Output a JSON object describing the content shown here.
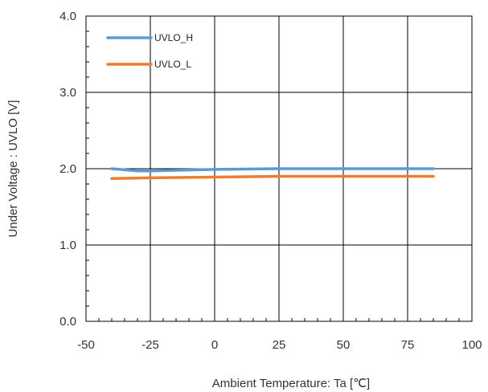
{
  "chart_data": {
    "type": "line",
    "xlabel": "Ambient Temperature: Ta [℃]",
    "ylabel": "Under Voltage : UVLO [V]",
    "xlim": [
      -50,
      100
    ],
    "ylim": [
      0.0,
      4.0
    ],
    "x_ticks": [
      -50,
      -25,
      0,
      25,
      50,
      75,
      100
    ],
    "x_tick_labels": [
      "-50",
      "-25",
      "0",
      "25",
      "50",
      "75",
      "100"
    ],
    "y_ticks": [
      0.0,
      1.0,
      2.0,
      3.0,
      4.0
    ],
    "y_tick_labels": [
      "0.0",
      "1.0",
      "2.0",
      "3.0",
      "4.0"
    ],
    "grid": true,
    "legend_position": "top-left",
    "series": [
      {
        "name": "UVLO_H",
        "color": "#5B9BD5",
        "x": [
          -40,
          -30,
          -25,
          0,
          25,
          50,
          75,
          85
        ],
        "y": [
          2.0,
          1.97,
          1.97,
          1.99,
          2.0,
          2.0,
          2.0,
          2.0
        ]
      },
      {
        "name": "UVLO_L",
        "color": "#ED7D31",
        "x": [
          -40,
          -25,
          0,
          25,
          50,
          75,
          85
        ],
        "y": [
          1.87,
          1.88,
          1.89,
          1.9,
          1.9,
          1.9,
          1.9
        ]
      }
    ]
  }
}
